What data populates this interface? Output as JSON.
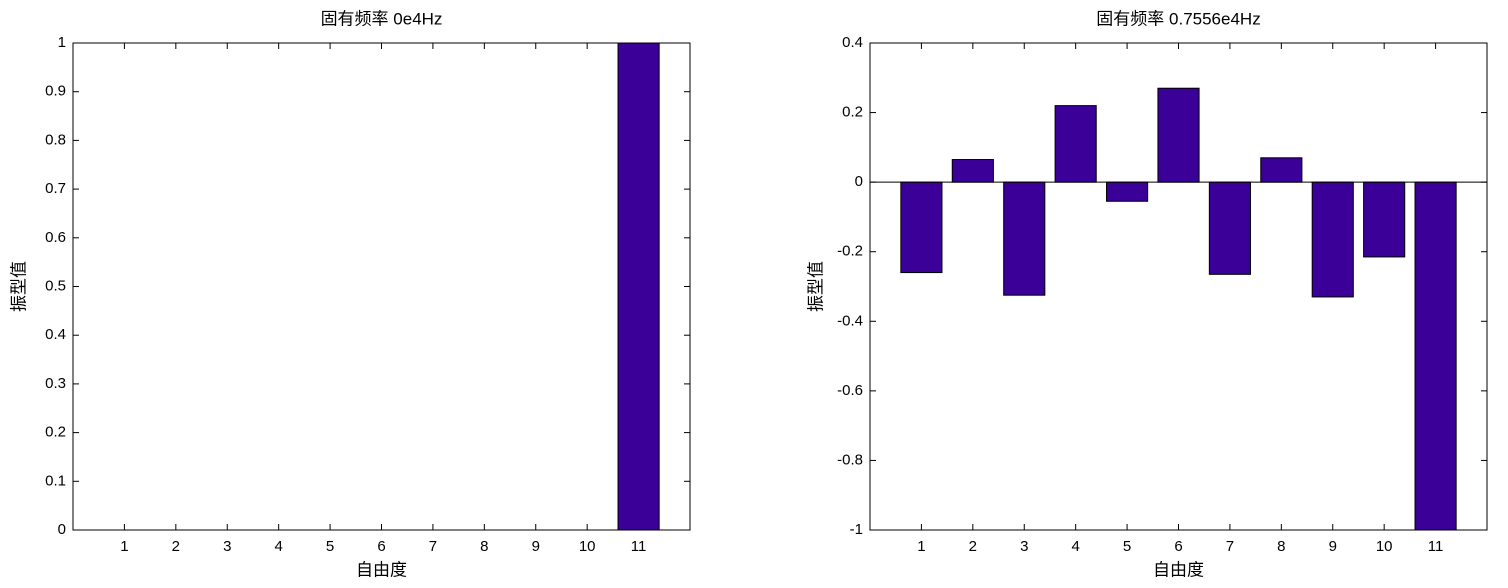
{
  "chart_data": [
    {
      "type": "bar",
      "title": "固有频率 0e4Hz",
      "xlabel": "自由度",
      "ylabel": "振型值",
      "categories": [
        "1",
        "2",
        "3",
        "4",
        "5",
        "6",
        "7",
        "8",
        "9",
        "10",
        "11"
      ],
      "values": [
        0,
        0,
        0,
        0,
        0,
        0,
        0,
        0,
        0,
        0,
        1
      ],
      "color": "#3a0098",
      "ylim": [
        0,
        1
      ],
      "yticks": [
        0,
        0.1,
        0.2,
        0.3,
        0.4,
        0.5,
        0.6,
        0.7,
        0.8,
        0.9,
        1
      ]
    },
    {
      "type": "bar",
      "title": "固有频率 0.7556e4Hz",
      "xlabel": "自由度",
      "ylabel": "振型值",
      "categories": [
        "1",
        "2",
        "3",
        "4",
        "5",
        "6",
        "7",
        "8",
        "9",
        "10",
        "11"
      ],
      "values": [
        -0.26,
        0.065,
        -0.325,
        0.22,
        -0.055,
        0.27,
        -0.265,
        0.07,
        -0.33,
        -0.215,
        -1
      ],
      "color": "#3a0098",
      "ylim": [
        -1,
        0.4
      ],
      "yticks": [
        -1,
        -0.8,
        -0.6,
        -0.4,
        -0.2,
        0,
        0.2,
        0.4
      ]
    }
  ]
}
